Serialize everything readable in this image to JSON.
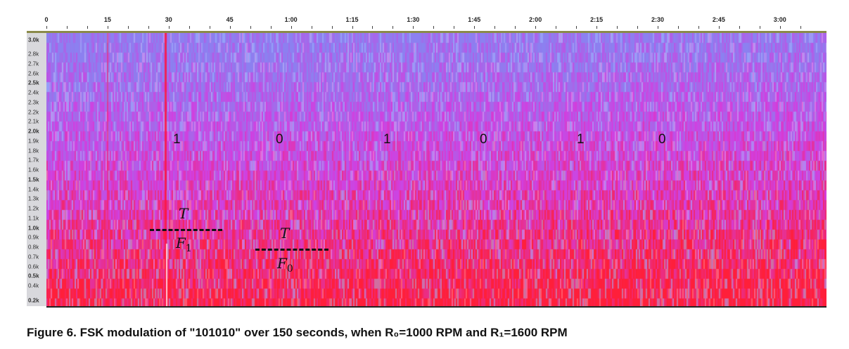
{
  "time_axis": {
    "labels": [
      {
        "t": 15,
        "text": "15"
      },
      {
        "t": 30,
        "text": "30"
      },
      {
        "t": 45,
        "text": "45"
      },
      {
        "t": 60,
        "text": "1:00"
      },
      {
        "t": 75,
        "text": "1:15"
      },
      {
        "t": 90,
        "text": "1:30"
      },
      {
        "t": 105,
        "text": "1:45"
      },
      {
        "t": 120,
        "text": "2:00"
      },
      {
        "t": 135,
        "text": "2:15"
      },
      {
        "t": 150,
        "text": "2:30"
      },
      {
        "t": 165,
        "text": "2:45"
      },
      {
        "t": 180,
        "text": "3:00"
      }
    ],
    "zero": "0"
  },
  "freq_axis": {
    "labels": [
      {
        "f": 3.0,
        "text": "3.0k",
        "bold": true
      },
      {
        "f": 2.8,
        "text": "2.8k"
      },
      {
        "f": 2.7,
        "text": "2.7k"
      },
      {
        "f": 2.6,
        "text": "2.6k"
      },
      {
        "f": 2.5,
        "text": "2.5k",
        "bold": true
      },
      {
        "f": 2.4,
        "text": "2.4k"
      },
      {
        "f": 2.3,
        "text": "2.3k"
      },
      {
        "f": 2.2,
        "text": "2.2k"
      },
      {
        "f": 2.1,
        "text": "2.1k"
      },
      {
        "f": 2.0,
        "text": "2.0k",
        "bold": true
      },
      {
        "f": 1.9,
        "text": "1.9k"
      },
      {
        "f": 1.8,
        "text": "1.8k"
      },
      {
        "f": 1.7,
        "text": "1.7k"
      },
      {
        "f": 1.6,
        "text": "1.6k"
      },
      {
        "f": 1.5,
        "text": "1.5k",
        "bold": true
      },
      {
        "f": 1.4,
        "text": "1.4k"
      },
      {
        "f": 1.3,
        "text": "1.3k"
      },
      {
        "f": 1.2,
        "text": "1.2k"
      },
      {
        "f": 1.1,
        "text": "1.1k"
      },
      {
        "f": 1.0,
        "text": "1.0k",
        "bold": true
      },
      {
        "f": 0.9,
        "text": "0.9k"
      },
      {
        "f": 0.8,
        "text": "0.8k"
      },
      {
        "f": 0.7,
        "text": "0.7k"
      },
      {
        "f": 0.6,
        "text": "0.6k"
      },
      {
        "f": 0.5,
        "text": "0.5k",
        "bold": true
      },
      {
        "f": 0.4,
        "text": "0.4k"
      },
      {
        "f": 0.2,
        "text": "0.2k",
        "bold": true
      }
    ]
  },
  "bits": [
    "1",
    "0",
    "1",
    "0",
    "1",
    "0"
  ],
  "annotations": {
    "t1": "T",
    "f1": "F",
    "f1_sub": "1",
    "t0": "T",
    "f0": "F",
    "f0_sub": "0"
  },
  "colors": {
    "top": "#8c80f0",
    "mid": "#d23ee0",
    "bottom": "#ff1f3a"
  },
  "caption": "Figure 6. FSK modulation of \"101010\" over 150 seconds, when R₀=1000 RPM and R₁=1600 RPM"
}
